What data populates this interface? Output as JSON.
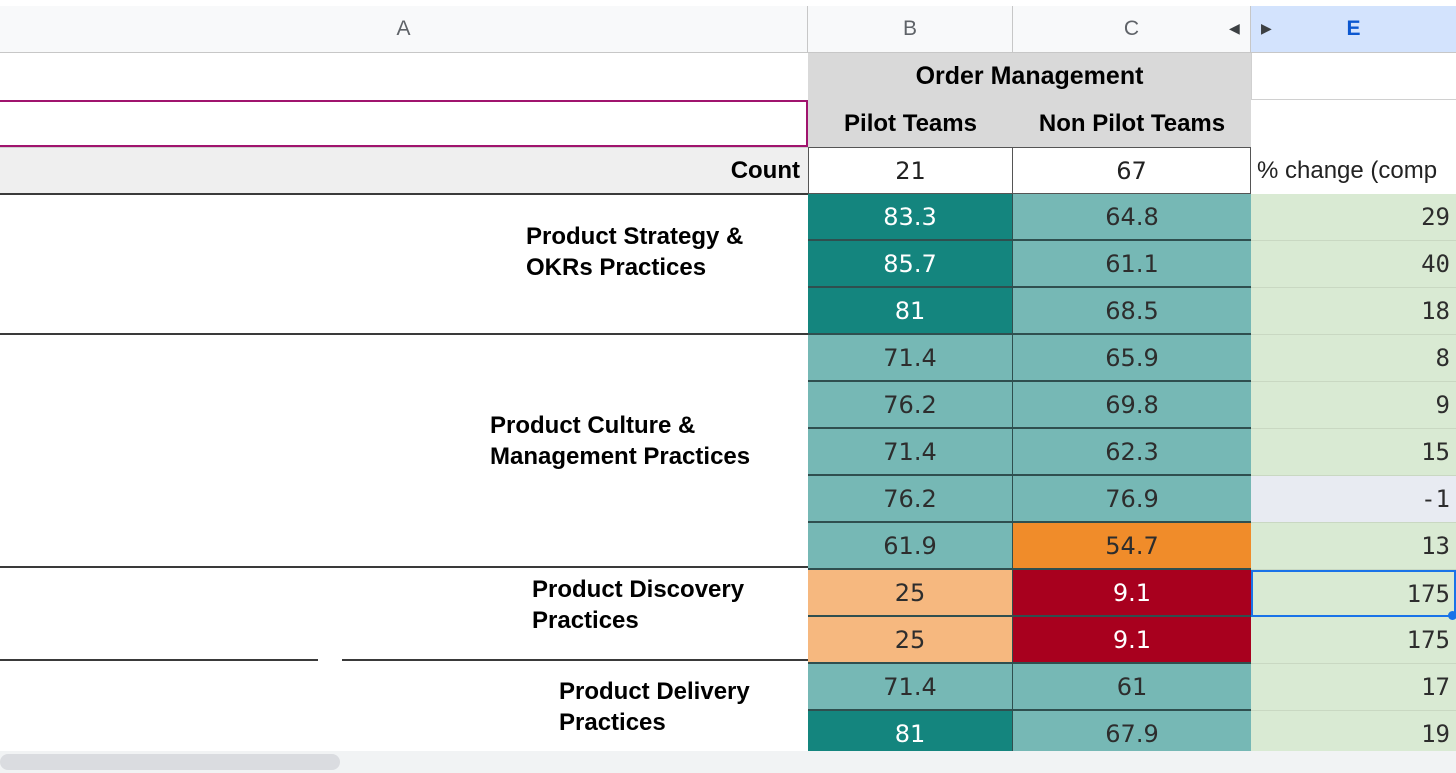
{
  "columns": {
    "a": "A",
    "b": "B",
    "c": "C",
    "e": "E"
  },
  "header": {
    "group_title": "Order Management",
    "pilot": "Pilot Teams",
    "non_pilot": "Non Pilot Teams",
    "count_label": "Count",
    "count_pilot": "21",
    "count_non_pilot": "67",
    "change_label": "% change (comp"
  },
  "groups": [
    {
      "line1": "Product Strategy &",
      "line2": "OKRs Practices"
    },
    {
      "line1": "Product Culture &",
      "line2": "Management Practices"
    },
    {
      "line1": "Product Discovery",
      "line2": "Practices"
    },
    {
      "line1": "Product Delivery",
      "line2": "Practices"
    }
  ],
  "rows": [
    {
      "pilot": "83.3",
      "non_pilot": "64.8",
      "change": "29"
    },
    {
      "pilot": "85.7",
      "non_pilot": "61.1",
      "change": "40"
    },
    {
      "pilot": "81",
      "non_pilot": "68.5",
      "change": "18"
    },
    {
      "pilot": "71.4",
      "non_pilot": "65.9",
      "change": "8"
    },
    {
      "pilot": "76.2",
      "non_pilot": "69.8",
      "change": "9"
    },
    {
      "pilot": "71.4",
      "non_pilot": "62.3",
      "change": "15"
    },
    {
      "pilot": "76.2",
      "non_pilot": "76.9",
      "change": "-1"
    },
    {
      "pilot": "61.9",
      "non_pilot": "54.7",
      "change": "13"
    },
    {
      "pilot": "25",
      "non_pilot": "9.1",
      "change": "175"
    },
    {
      "pilot": "25",
      "non_pilot": "9.1",
      "change": "175"
    },
    {
      "pilot": "71.4",
      "non_pilot": "61",
      "change": "17"
    },
    {
      "pilot": "81",
      "non_pilot": "67.9",
      "change": "19"
    }
  ],
  "colors": {
    "dark_teal": "#14857e",
    "light_teal": "#76b8b5",
    "peach": "#f6b87f",
    "orange": "#f08c2a",
    "crimson": "#a8001e",
    "light_green": "#d9ead3",
    "light_gray": "#e8ebf2"
  },
  "icons": {
    "scroll_left": "triangle-left-icon",
    "scroll_right": "triangle-right-icon"
  }
}
